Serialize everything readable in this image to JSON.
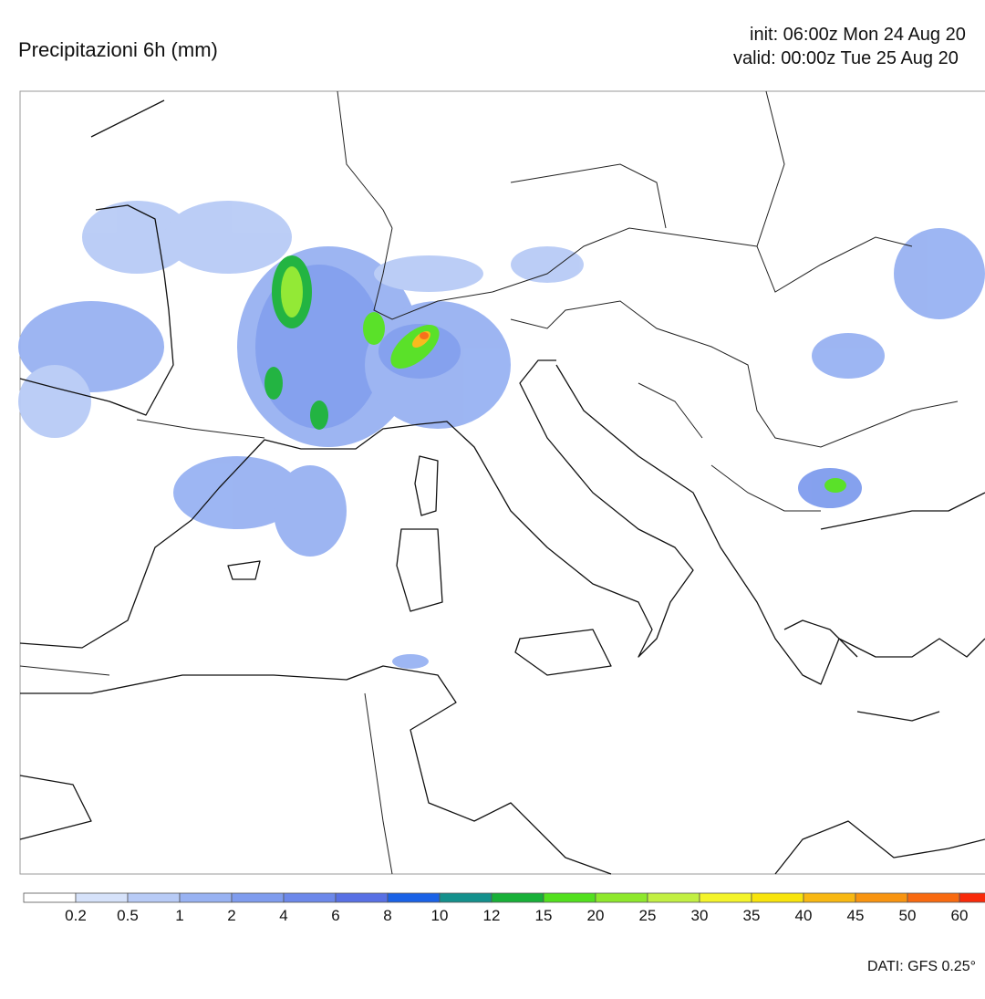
{
  "header": {
    "title": "Precipitazioni 6h (mm)",
    "init": "init: 06:00z Mon 24 Aug 20",
    "valid": "valid: 00:00z Tue 25 Aug 20"
  },
  "legend": {
    "ticks": [
      0.2,
      0.5,
      1,
      2,
      4,
      6,
      8,
      10,
      12,
      15,
      20,
      25,
      30,
      35,
      40,
      45,
      50,
      60
    ],
    "colors": [
      "#ffffff",
      "#d6e2fa",
      "#b8cbf6",
      "#98b2f2",
      "#7f9cee",
      "#6c88ea",
      "#5870e4",
      "#1a62e6",
      "#14908c",
      "#18b038",
      "#52e01e",
      "#8ee82c",
      "#c2f042",
      "#f4f42a",
      "#f8e40c",
      "#f8b812",
      "#f89410",
      "#f86a10",
      "#f82a0a"
    ]
  },
  "footer": {
    "source": "DATI: GFS 0.25°"
  }
}
